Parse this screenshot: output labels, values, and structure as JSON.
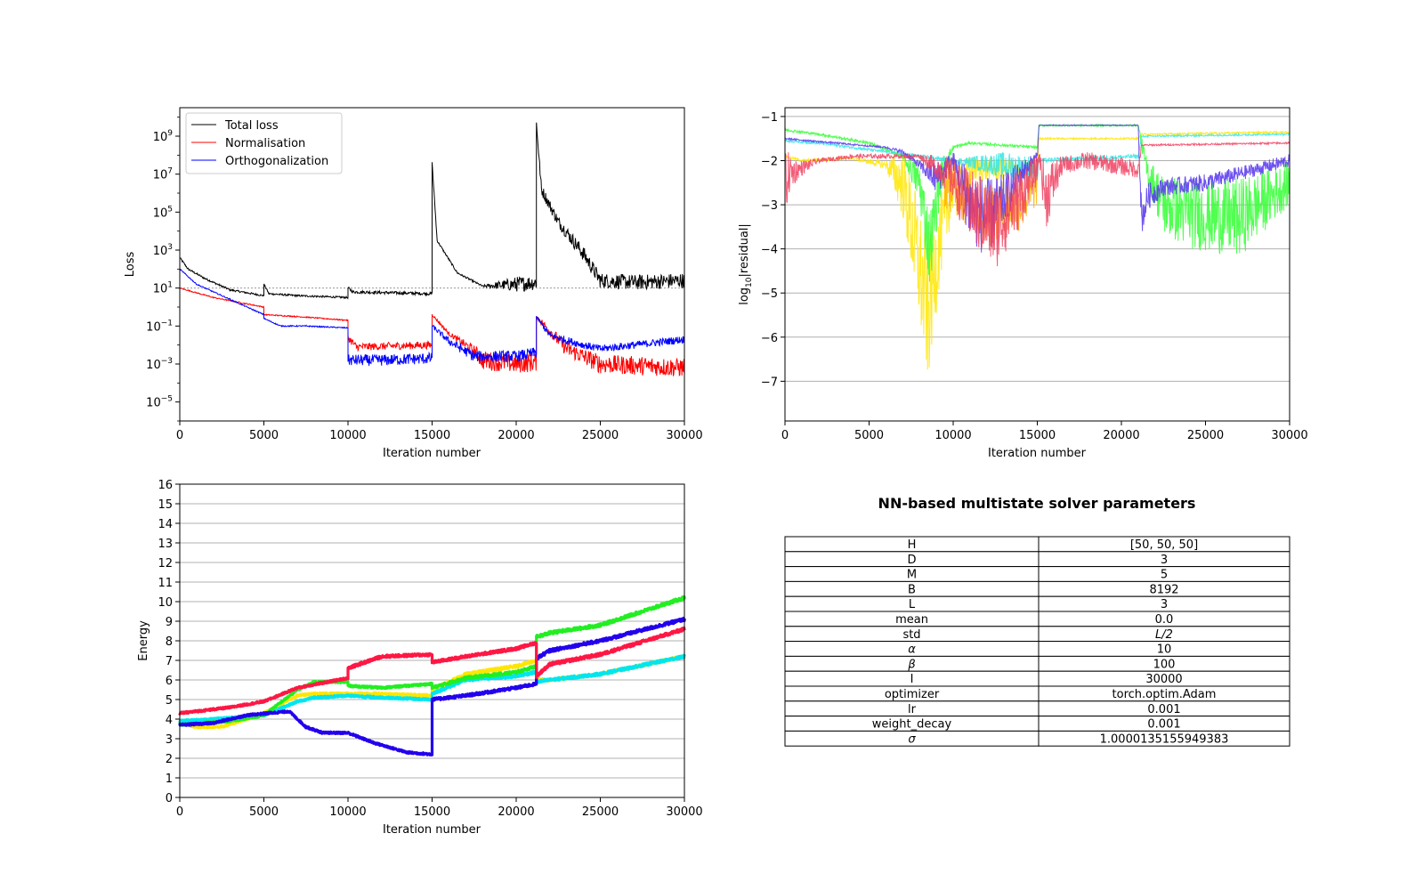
{
  "chart_data": [
    {
      "type": "line",
      "xlabel": "Iteration number",
      "ylabel": "Loss",
      "yscale": "log",
      "xlim": [
        0,
        30000
      ],
      "ylim_exp": [
        -6,
        10.5
      ],
      "x_ticks": [
        0,
        5000,
        10000,
        15000,
        20000,
        25000,
        30000
      ],
      "y_tick_labels": [
        {
          "base": "10",
          "exp": "9",
          "value_exp": 9
        },
        {
          "base": "10",
          "exp": "7",
          "value_exp": 7
        },
        {
          "base": "10",
          "exp": "5",
          "value_exp": 5
        },
        {
          "base": "10",
          "exp": "3",
          "value_exp": 3
        },
        {
          "base": "10",
          "exp": "1",
          "value_exp": 1
        },
        {
          "base": "10",
          "exp": "−1",
          "value_exp": -1
        },
        {
          "base": "10",
          "exp": "−3",
          "value_exp": -3
        },
        {
          "base": "10",
          "exp": "−5",
          "value_exp": -5
        }
      ],
      "legend_position": "top-left",
      "reference_line": {
        "value_exp": 1,
        "style": "dotted",
        "color": "#888888"
      },
      "series": [
        {
          "name": "Total loss",
          "color": "#000000",
          "x": [
            0,
            500,
            1500,
            3000,
            4999,
            5000,
            5300,
            7000,
            9999,
            10000,
            10300,
            14999,
            15000,
            15300,
            16500,
            18000,
            20000,
            21199,
            21200,
            21500,
            22500,
            24000,
            25000,
            27000,
            30000
          ],
          "log10_y": [
            2.6,
            2.0,
            1.5,
            0.9,
            0.6,
            1.2,
            0.7,
            0.6,
            0.5,
            1.0,
            0.8,
            0.7,
            7.6,
            3.5,
            1.8,
            1.1,
            1.2,
            1.3,
            9.7,
            6.2,
            4.5,
            2.8,
            1.4,
            1.3,
            1.4
          ],
          "noise": [
            0.05,
            0.05,
            0.05,
            0.05,
            0.05,
            0.05,
            0.05,
            0.05,
            0.05,
            0.08,
            0.08,
            0.08,
            0.05,
            0.05,
            0.05,
            0.05,
            0.4,
            0.4,
            0.1,
            0.3,
            0.3,
            0.4,
            0.4,
            0.4,
            0.4
          ]
        },
        {
          "name": "Normalisation",
          "color": "#ff0000",
          "x": [
            0,
            2000,
            4999,
            5000,
            7000,
            9999,
            10000,
            10500,
            14999,
            15000,
            16000,
            17500,
            18000,
            20000,
            21199,
            21200,
            21500,
            23000,
            25000,
            30000
          ],
          "log10_y": [
            1.0,
            0.5,
            0.0,
            -0.4,
            -0.5,
            -0.7,
            -1.6,
            -2.1,
            -2.0,
            -0.4,
            -1.4,
            -2.3,
            -2.8,
            -3.0,
            -2.9,
            -0.5,
            -0.8,
            -2.2,
            -3.0,
            -3.2
          ],
          "noise": [
            0.03,
            0.03,
            0.03,
            0.03,
            0.03,
            0.03,
            0.2,
            0.2,
            0.2,
            0.05,
            0.1,
            0.3,
            0.5,
            0.5,
            0.5,
            0.05,
            0.2,
            0.4,
            0.5,
            0.5
          ]
        },
        {
          "name": "Orthogonalization",
          "color": "#0000ff",
          "x": [
            0,
            1000,
            3000,
            4999,
            5000,
            6000,
            7500,
            9999,
            10000,
            12000,
            14999,
            15000,
            16000,
            17500,
            20000,
            21199,
            21200,
            22000,
            24000,
            25000,
            30000
          ],
          "log10_y": [
            2.0,
            1.2,
            0.4,
            -0.4,
            -0.6,
            -1.0,
            -1.0,
            -1.1,
            -2.8,
            -2.8,
            -2.7,
            -1.0,
            -1.8,
            -2.6,
            -2.6,
            -2.4,
            -0.5,
            -1.5,
            -2.0,
            -2.2,
            -1.7
          ],
          "noise": [
            0.03,
            0.03,
            0.03,
            0.03,
            0.03,
            0.03,
            0.03,
            0.03,
            0.3,
            0.3,
            0.3,
            0.1,
            0.2,
            0.3,
            0.3,
            0.3,
            0.05,
            0.2,
            0.2,
            0.2,
            0.2
          ]
        }
      ]
    },
    {
      "type": "line",
      "xlabel": "Iteration number",
      "ylabel": "log₁₀|residual|",
      "ylabel_parts": {
        "pre": "log",
        "sub": "10",
        "post": "|residual|"
      },
      "xlim": [
        0,
        30000
      ],
      "ylim": [
        -7.9,
        -0.8
      ],
      "x_ticks": [
        0,
        5000,
        10000,
        15000,
        20000,
        25000,
        30000
      ],
      "y_ticks": [
        -1,
        -2,
        -3,
        -4,
        -5,
        -6,
        -7
      ],
      "y_tick_labels": [
        "−1",
        "−2",
        "−3",
        "−4",
        "−5",
        "−6",
        "−7"
      ],
      "grid": "horizontal",
      "series": [
        {
          "color": "#ffe600",
          "x": [
            0,
            1000,
            4000,
            6000,
            7000,
            7800,
            8500,
            9200,
            10000,
            11000,
            15000,
            15100,
            21000,
            21200,
            22000,
            30000
          ],
          "y": [
            -1.9,
            -2.0,
            -1.95,
            -2.1,
            -2.5,
            -4.0,
            -5.5,
            -3.8,
            -2.6,
            -2.2,
            -2.2,
            -1.5,
            -1.5,
            -1.4,
            -1.4,
            -1.35
          ],
          "noise": [
            0.03,
            0.03,
            0.03,
            0.1,
            0.8,
            1.3,
            1.6,
            1.0,
            0.5,
            0.3,
            0.2,
            0.02,
            0.02,
            0.02,
            0.02,
            0.02
          ]
        },
        {
          "color": "#33ff33",
          "x": [
            0,
            2000,
            5000,
            7000,
            8000,
            8600,
            9300,
            10000,
            11000,
            15000,
            15100,
            21000,
            21500,
            22500,
            24000,
            27000,
            30000
          ],
          "y": [
            -1.3,
            -1.4,
            -1.6,
            -1.9,
            -2.5,
            -4.0,
            -2.3,
            -1.7,
            -1.6,
            -1.7,
            -1.2,
            -1.2,
            -2.2,
            -3.0,
            -3.2,
            -3.3,
            -2.5
          ],
          "noise": [
            0.03,
            0.03,
            0.03,
            0.05,
            0.5,
            0.9,
            0.4,
            0.05,
            0.03,
            0.03,
            0.02,
            0.02,
            0.3,
            0.7,
            0.8,
            0.9,
            0.5
          ]
        },
        {
          "color": "#33e6e6",
          "x": [
            0,
            2000,
            5000,
            7000,
            9000,
            10000,
            13000,
            15000,
            15100,
            21000,
            21200,
            30000
          ],
          "y": [
            -1.55,
            -1.6,
            -1.75,
            -1.85,
            -1.95,
            -2.0,
            -2.1,
            -2.2,
            -2.0,
            -1.9,
            -1.45,
            -1.4
          ],
          "noise": [
            0.03,
            0.03,
            0.03,
            0.03,
            0.05,
            0.05,
            0.3,
            0.3,
            0.05,
            0.05,
            0.02,
            0.02
          ]
        },
        {
          "color": "#ffb000",
          "x": [
            9500,
            10000,
            11000,
            12000,
            13000,
            14000,
            15000
          ],
          "y": [
            -2.5,
            -2.6,
            -2.9,
            -3.2,
            -3.1,
            -3.0,
            -2.6
          ],
          "noise": [
            0.6,
            0.6,
            0.7,
            0.8,
            0.7,
            0.6,
            0.4
          ]
        },
        {
          "color": "#5533ee",
          "x": [
            0,
            3000,
            6000,
            7000,
            8000,
            9000,
            10000,
            11000,
            12000,
            13000,
            14000,
            15000,
            15100,
            21000,
            21200,
            21600,
            22500,
            25000,
            28000,
            30000
          ],
          "y": [
            -1.5,
            -1.6,
            -1.7,
            -1.8,
            -2.1,
            -2.4,
            -2.0,
            -3.0,
            -3.3,
            -2.9,
            -2.3,
            -1.9,
            -1.2,
            -1.2,
            -3.3,
            -2.8,
            -2.6,
            -2.5,
            -2.2,
            -2.0
          ],
          "noise": [
            0.02,
            0.02,
            0.02,
            0.05,
            0.1,
            0.4,
            0.2,
            0.9,
            0.9,
            0.6,
            0.3,
            0.1,
            0.01,
            0.01,
            0.4,
            0.3,
            0.2,
            0.2,
            0.15,
            0.15
          ]
        },
        {
          "color": "#f04060",
          "x": [
            0,
            200,
            800,
            2000,
            4000,
            8000,
            10000,
            10500,
            11500,
            12500,
            14000,
            15000,
            15100,
            15500,
            16500,
            18000,
            21000,
            21200,
            30000
          ],
          "y": [
            -2.6,
            -2.3,
            -2.2,
            -2.0,
            -1.9,
            -1.9,
            -2.4,
            -2.8,
            -3.2,
            -3.5,
            -2.8,
            -2.2,
            -1.9,
            -2.8,
            -2.1,
            -2.0,
            -2.2,
            -1.65,
            -1.6
          ],
          "noise": [
            0.8,
            0.5,
            0.2,
            0.05,
            0.05,
            0.05,
            0.5,
            0.7,
            0.9,
            1.0,
            0.7,
            0.3,
            0.1,
            0.8,
            0.2,
            0.2,
            0.2,
            0.02,
            0.02
          ]
        }
      ]
    },
    {
      "type": "line",
      "xlabel": "Iteration number",
      "ylabel": "Energy",
      "xlim": [
        0,
        30000
      ],
      "ylim": [
        0,
        16
      ],
      "x_ticks": [
        0,
        5000,
        10000,
        15000,
        20000,
        25000,
        30000
      ],
      "y_ticks": [
        0,
        1,
        2,
        3,
        4,
        5,
        6,
        7,
        8,
        9,
        10,
        11,
        12,
        13,
        14,
        15,
        16
      ],
      "grid": "horizontal",
      "series": [
        {
          "color": "#ffe600",
          "x": [
            0,
            1000,
            2500,
            5000,
            7000,
            8000,
            10000,
            12000,
            14999,
            15000,
            17000,
            20000,
            21199,
            21200,
            22000,
            25000,
            30000
          ],
          "y": [
            3.8,
            3.6,
            3.6,
            4.3,
            5.2,
            5.3,
            5.3,
            5.3,
            5.2,
            5.5,
            6.3,
            6.7,
            7.0,
            6.0,
            6.0,
            6.3,
            7.2
          ],
          "noise": [
            0.05,
            0.05,
            0.05,
            0.05,
            0.05,
            0.05,
            0.05,
            0.05,
            0.05,
            0.07,
            0.07,
            0.07,
            0.07,
            0.07,
            0.07,
            0.07,
            0.07
          ]
        },
        {
          "color": "#00e5ee",
          "x": [
            0,
            2000,
            5000,
            7000,
            8000,
            10000,
            12000,
            14999,
            15000,
            17000,
            20000,
            21199,
            21200,
            22000,
            25000,
            30000
          ],
          "y": [
            3.9,
            4.0,
            4.2,
            4.9,
            5.1,
            5.2,
            5.1,
            5.0,
            5.3,
            6.0,
            6.2,
            6.4,
            5.9,
            6.0,
            6.3,
            7.2
          ],
          "noise": [
            0.05,
            0.05,
            0.05,
            0.05,
            0.05,
            0.05,
            0.05,
            0.05,
            0.07,
            0.07,
            0.07,
            0.07,
            0.07,
            0.07,
            0.07,
            0.07
          ]
        },
        {
          "color": "#22ee22",
          "x": [
            0,
            3000,
            5000,
            7000,
            8000,
            9999,
            10000,
            12000,
            14999,
            15000,
            17000,
            20000,
            21199,
            21200,
            22000,
            25000,
            30000
          ],
          "y": [
            3.7,
            3.9,
            4.2,
            5.5,
            5.9,
            5.9,
            5.7,
            5.6,
            5.8,
            5.6,
            6.1,
            6.4,
            6.7,
            8.2,
            8.4,
            8.8,
            10.2
          ],
          "noise": [
            0.05,
            0.05,
            0.05,
            0.05,
            0.05,
            0.05,
            0.05,
            0.05,
            0.05,
            0.07,
            0.07,
            0.07,
            0.07,
            0.08,
            0.08,
            0.08,
            0.08
          ]
        },
        {
          "color": "#2200ee",
          "x": [
            0,
            2000,
            4000,
            6500,
            7500,
            8500,
            10000,
            11500,
            13500,
            14999,
            15000,
            17000,
            20000,
            21199,
            21200,
            22000,
            25000,
            30000
          ],
          "y": [
            3.7,
            3.8,
            4.2,
            4.4,
            3.6,
            3.3,
            3.3,
            2.8,
            2.3,
            2.2,
            5.0,
            5.2,
            5.6,
            5.8,
            7.1,
            7.5,
            8.0,
            9.1
          ],
          "noise": [
            0.05,
            0.05,
            0.05,
            0.05,
            0.05,
            0.05,
            0.05,
            0.05,
            0.05,
            0.05,
            0.07,
            0.07,
            0.07,
            0.07,
            0.08,
            0.08,
            0.08,
            0.08
          ]
        },
        {
          "color": "#ff1744",
          "x": [
            0,
            3000,
            5000,
            7000,
            9999,
            10000,
            12000,
            14999,
            15000,
            17000,
            20000,
            21199,
            21200,
            22000,
            25000,
            30000
          ],
          "y": [
            4.3,
            4.6,
            4.9,
            5.6,
            6.1,
            6.6,
            7.2,
            7.3,
            6.9,
            7.2,
            7.6,
            7.9,
            6.2,
            6.8,
            7.3,
            8.6
          ],
          "noise": [
            0.05,
            0.05,
            0.05,
            0.05,
            0.05,
            0.07,
            0.07,
            0.07,
            0.07,
            0.07,
            0.07,
            0.07,
            0.08,
            0.08,
            0.08,
            0.08
          ]
        }
      ]
    },
    {
      "type": "table",
      "title": "NN-based multistate solver parameters",
      "rows": [
        {
          "key": "H",
          "value": "[50, 50, 50]"
        },
        {
          "key": "D",
          "value": "3"
        },
        {
          "key": "M",
          "value": "5"
        },
        {
          "key": "B",
          "value": "8192"
        },
        {
          "key": "L",
          "value": "3"
        },
        {
          "key": "mean",
          "value": "0.0"
        },
        {
          "key": "std",
          "value": "L/2"
        },
        {
          "key": "α",
          "value": "10"
        },
        {
          "key": "β",
          "value": "100"
        },
        {
          "key": "I",
          "value": "30000"
        },
        {
          "key": "optimizer",
          "value": "torch.optim.Adam"
        },
        {
          "key": "lr",
          "value": "0.001"
        },
        {
          "key": "weight_decay",
          "value": "0.001"
        },
        {
          "key": "σ",
          "value": "1.0000135155949383"
        }
      ]
    }
  ]
}
